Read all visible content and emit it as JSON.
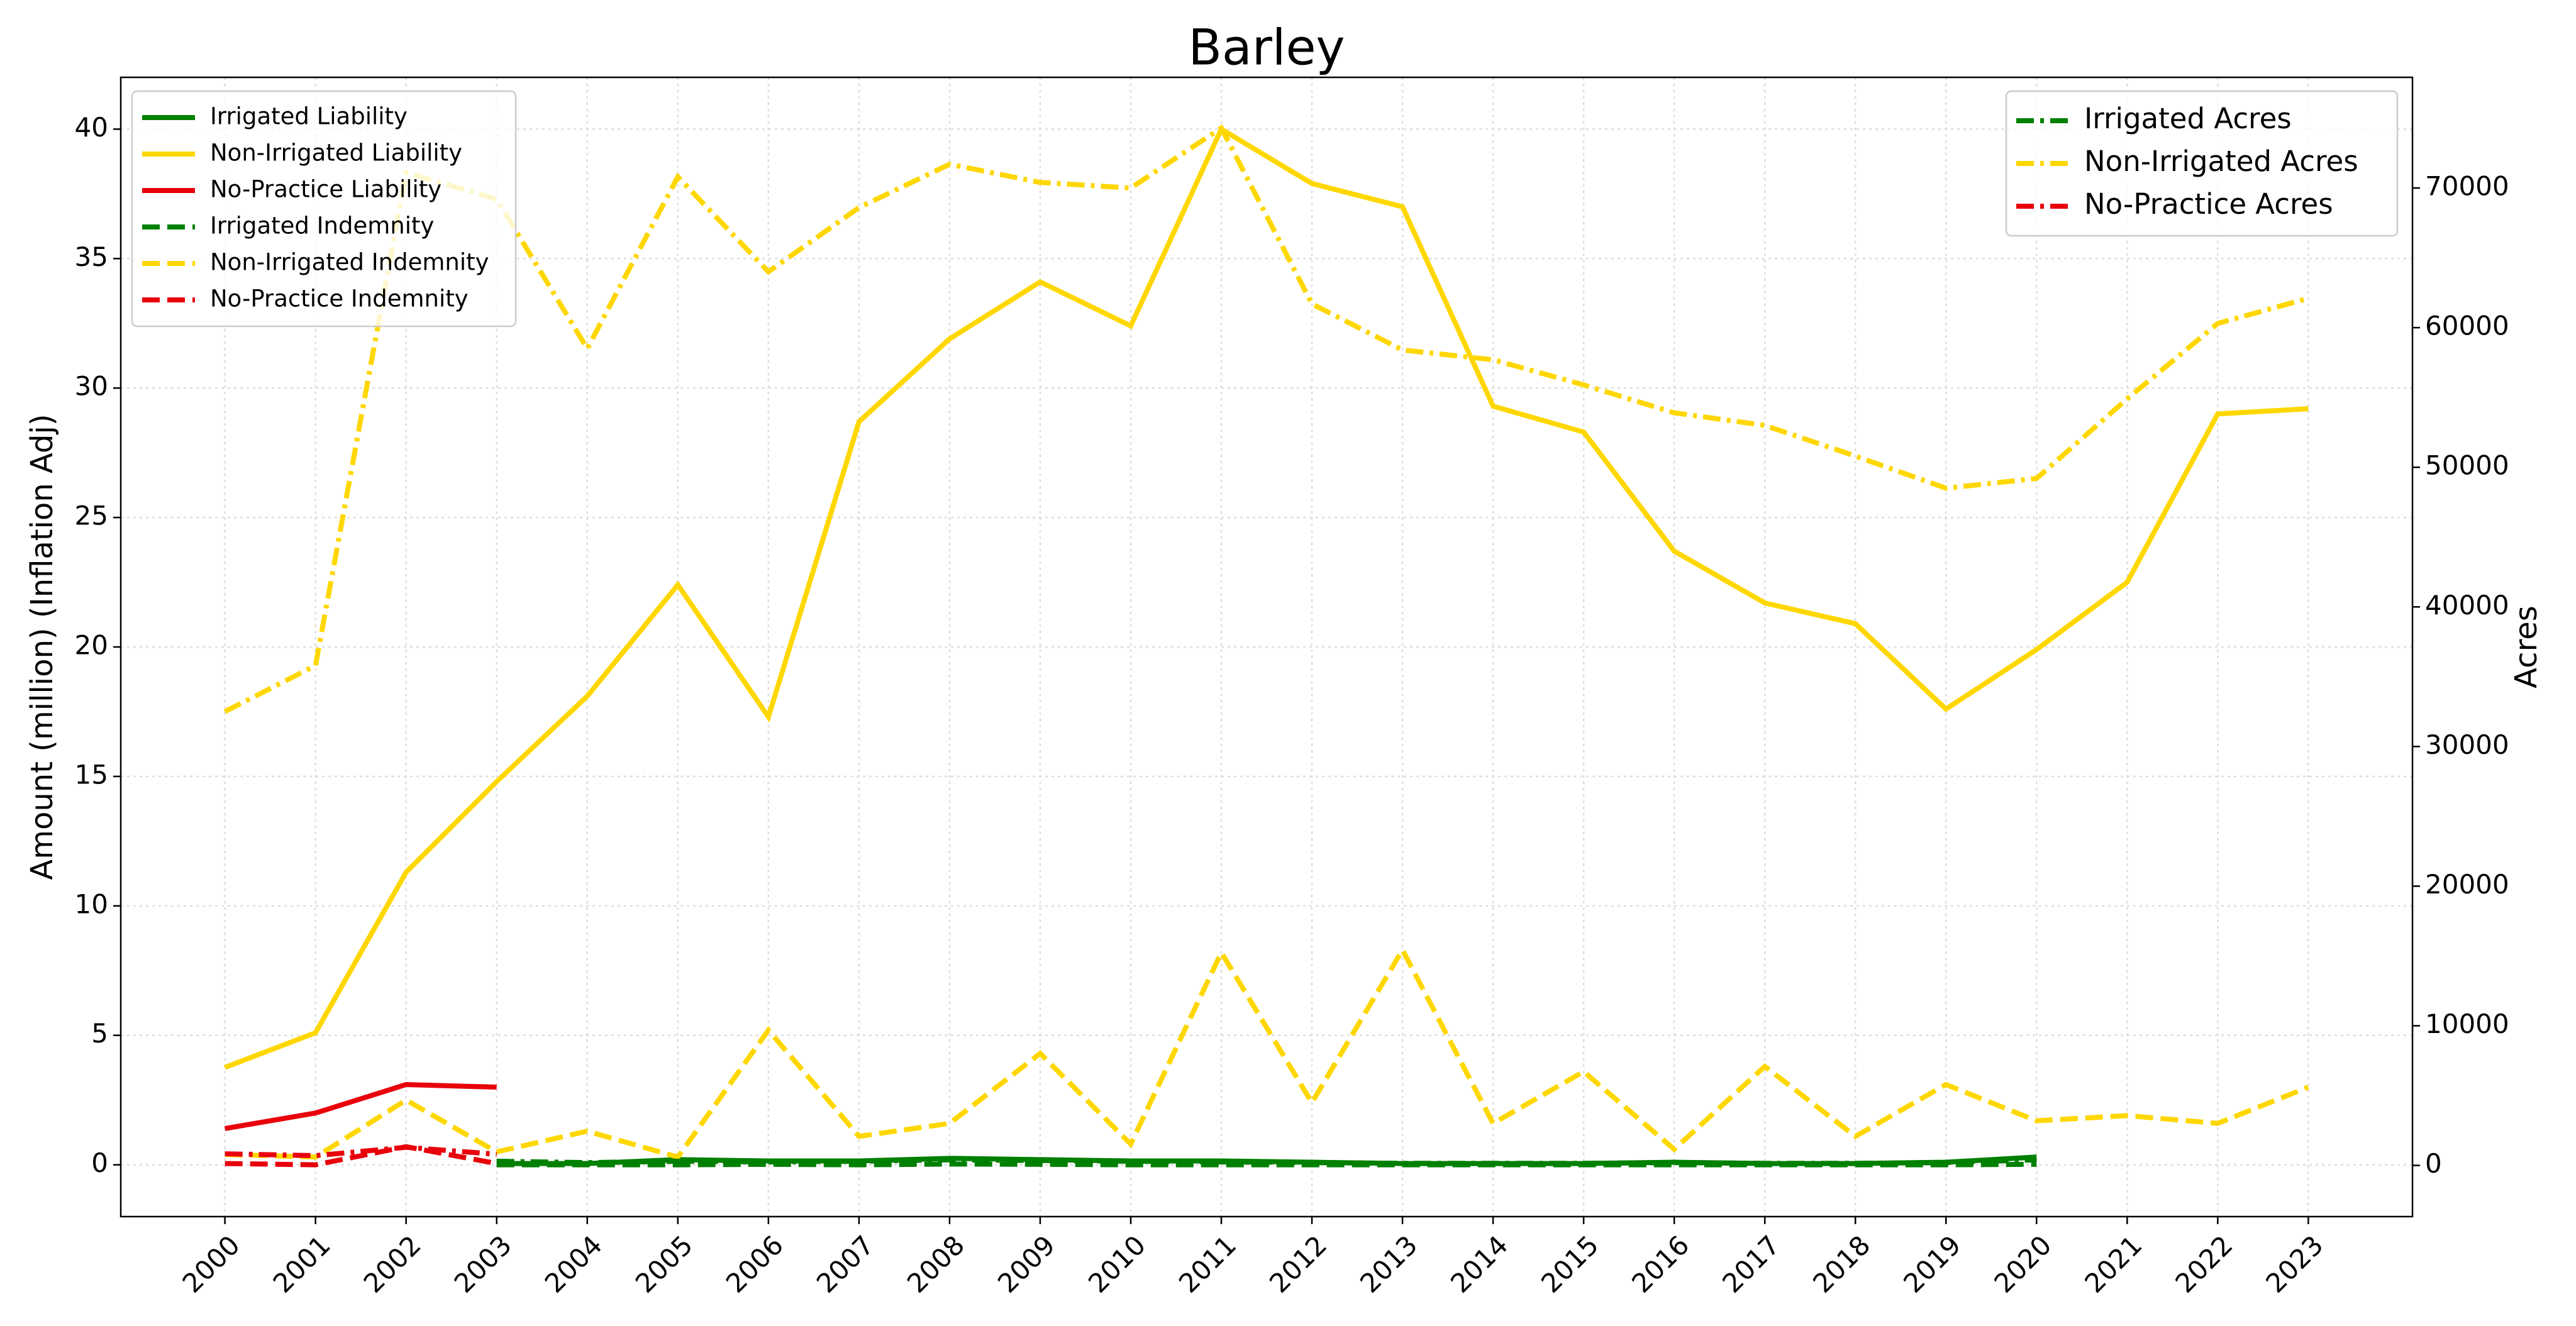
{
  "chart_data": {
    "type": "line",
    "title": "Barley",
    "ylabel": "Amount (million) (Inflation Adj)",
    "y2label": "Acres",
    "x": [
      2000,
      2001,
      2002,
      2003,
      2004,
      2005,
      2006,
      2007,
      2008,
      2009,
      2010,
      2011,
      2012,
      2013,
      2014,
      2015,
      2016,
      2017,
      2018,
      2019,
      2020,
      2021,
      2022,
      2023
    ],
    "xlim": [
      1998.85,
      2024.15
    ],
    "xticks": [
      2000,
      2001,
      2002,
      2003,
      2004,
      2005,
      2006,
      2007,
      2008,
      2009,
      2010,
      2011,
      2012,
      2013,
      2014,
      2015,
      2016,
      2017,
      2018,
      2019,
      2020,
      2021,
      2022,
      2023
    ],
    "ylim": [
      -2,
      42
    ],
    "yticks": [
      0,
      5,
      10,
      15,
      20,
      25,
      30,
      35,
      40
    ],
    "y2lim": [
      -3666,
      77926
    ],
    "y2ticks": [
      0,
      10000,
      20000,
      30000,
      40000,
      50000,
      60000,
      70000
    ],
    "grid": true,
    "legend": "upper left",
    "legend2": "upper right",
    "series": [
      {
        "name": "Irrigated Liability",
        "color": "#008000",
        "style": "solid",
        "axis": "y",
        "values": [
          null,
          null,
          null,
          0.05,
          0.05,
          0.2,
          0.15,
          0.15,
          0.25,
          0.2,
          0.15,
          0.15,
          0.1,
          0.05,
          0.05,
          0.05,
          0.1,
          0.05,
          0.05,
          0.1,
          0.3,
          null,
          null,
          null
        ]
      },
      {
        "name": "Non-Irrigated Liability",
        "color": "#ffd700",
        "style": "solid",
        "axis": "y",
        "values": [
          3.76,
          5.1,
          11.3,
          14.8,
          18.1,
          22.4,
          17.3,
          28.7,
          31.9,
          34.1,
          32.4,
          40,
          37.9,
          37,
          29.3,
          28.3,
          23.7,
          21.7,
          20.9,
          17.6,
          19.9,
          22.5,
          29,
          29.2
        ]
      },
      {
        "name": "No-Practice Liability",
        "color": "#e8000b",
        "style": "solid",
        "axis": "y",
        "values": [
          1.4,
          2.0,
          3.1,
          3.0,
          null,
          null,
          null,
          null,
          null,
          null,
          null,
          null,
          null,
          null,
          null,
          null,
          null,
          null,
          null,
          null,
          null,
          null,
          null,
          null
        ]
      },
      {
        "name": "Irrigated Indemnity",
        "color": "#008000",
        "style": "dashed",
        "axis": "y",
        "values": [
          null,
          null,
          null,
          0.0,
          0.0,
          0.0,
          0.02,
          0.0,
          0.03,
          0.02,
          0.0,
          0.0,
          0.0,
          0.0,
          0.0,
          0.0,
          0.0,
          0.0,
          0.0,
          0.0,
          0.02,
          null,
          null,
          null
        ]
      },
      {
        "name": "Non-Irrigated Indemnity",
        "color": "#ffd700",
        "style": "dashed",
        "axis": "y",
        "values": [
          0.4,
          0.3,
          2.5,
          0.5,
          1.3,
          0.3,
          5.2,
          1.1,
          1.6,
          4.3,
          0.8,
          8.2,
          2.4,
          8.3,
          1.6,
          3.6,
          0.6,
          3.8,
          1.1,
          3.1,
          1.7,
          1.9,
          1.6,
          3.0
        ]
      },
      {
        "name": "No-Practice Indemnity",
        "color": "#e8000b",
        "style": "dashed",
        "axis": "y",
        "values": [
          0.05,
          0.0,
          0.7,
          0.05,
          null,
          null,
          null,
          null,
          null,
          null,
          null,
          null,
          null,
          null,
          null,
          null,
          null,
          null,
          null,
          null,
          null,
          null,
          null,
          null
        ]
      },
      {
        "name": "Irrigated Acres",
        "color": "#008000",
        "style": "dashdot",
        "axis": "y2",
        "values": [
          null,
          null,
          null,
          300,
          200,
          300,
          250,
          300,
          400,
          350,
          300,
          250,
          200,
          150,
          150,
          150,
          200,
          150,
          150,
          200,
          400,
          null,
          null,
          null
        ]
      },
      {
        "name": "Non-Irrigated Acres",
        "color": "#ffd700",
        "style": "dashdot",
        "axis": "y2",
        "values": [
          32500,
          35800,
          71100,
          69200,
          58500,
          70800,
          64000,
          68600,
          71700,
          70400,
          70000,
          74300,
          61700,
          58400,
          57700,
          55900,
          53900,
          53000,
          50800,
          48500,
          49200,
          54900,
          60300,
          62100
        ]
      },
      {
        "name": "No-Practice Acres",
        "color": "#e8000b",
        "style": "dashdot",
        "axis": "y2",
        "values": [
          830,
          700,
          1300,
          800,
          null,
          null,
          null,
          null,
          null,
          null,
          null,
          null,
          null,
          null,
          null,
          null,
          null,
          null,
          null,
          null,
          null,
          null,
          null,
          null
        ]
      }
    ]
  }
}
